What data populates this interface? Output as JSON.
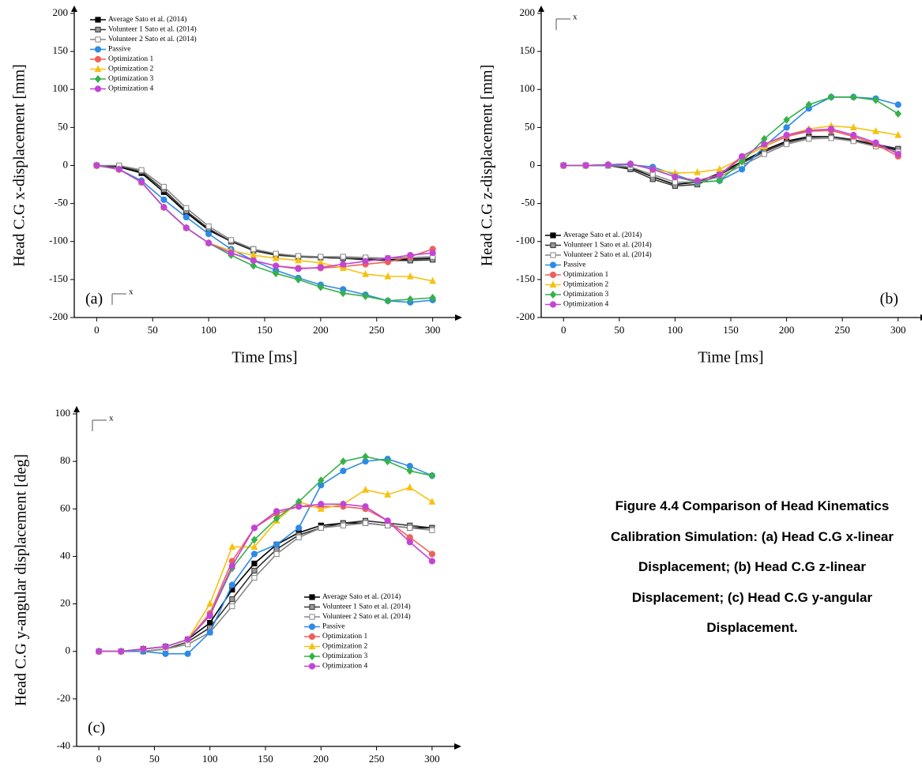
{
  "caption": "Figure 4.4 Comparison of Head Kinematics Calibration Simulation: (a) Head C.G x-linear Displacement; (b) Head C.G z-linear Displacement; (c) Head C.G y-angular Displacement.",
  "chart_data": [
    {
      "type": "line",
      "panel_label": "(a)",
      "orientation_label": "x",
      "x_label": "Time [ms]",
      "y_label": "Head C.G x-displacement [mm]",
      "legend": "upper left",
      "xlim": [
        -20,
        320
      ],
      "xticks": [
        0,
        50,
        100,
        150,
        200,
        250,
        300
      ],
      "ylim": [
        -200,
        200
      ],
      "yticks": [
        -200,
        -150,
        -100,
        -50,
        0,
        50,
        100,
        150,
        200
      ],
      "x": [
        0,
        20,
        40,
        60,
        80,
        100,
        120,
        140,
        160,
        180,
        200,
        220,
        240,
        260,
        280,
        300
      ],
      "series": [
        {
          "name": "Average Sato et al. (2014)",
          "color": "#000000",
          "marker": "square",
          "values": [
            0,
            -2,
            -10,
            -35,
            -62,
            -85,
            -100,
            -110,
            -117,
            -120,
            -121,
            -122,
            -123,
            -124,
            -123,
            -122
          ]
        },
        {
          "name": "Volunteer 1 Sato et al. (2014)",
          "color": "#333333",
          "marker": "half-square",
          "values": [
            0,
            -1,
            -8,
            -32,
            -60,
            -83,
            -100,
            -112,
            -118,
            -120,
            -121,
            -122,
            -124,
            -125,
            -125,
            -124
          ]
        },
        {
          "name": "Volunteer 2 Sato et al. (2014)",
          "color": "#888888",
          "marker": "open-square",
          "values": [
            0,
            0,
            -6,
            -28,
            -56,
            -80,
            -98,
            -110,
            -116,
            -119,
            -120,
            -120,
            -121,
            -122,
            -121,
            -120
          ]
        },
        {
          "name": "Passive",
          "color": "#2e8ae6",
          "marker": "circle",
          "values": [
            0,
            -5,
            -20,
            -45,
            -68,
            -90,
            -110,
            -125,
            -138,
            -148,
            -157,
            -163,
            -170,
            -178,
            -180,
            -177
          ]
        },
        {
          "name": "Optimization 1",
          "color": "#f0605a",
          "marker": "circle",
          "values": [
            0,
            -5,
            -22,
            -55,
            -82,
            -102,
            -115,
            -125,
            -132,
            -135,
            -135,
            -133,
            -130,
            -127,
            -120,
            -110
          ]
        },
        {
          "name": "Optimization 2",
          "color": "#f5c211",
          "marker": "triangle",
          "values": [
            0,
            -5,
            -22,
            -55,
            -82,
            -102,
            -112,
            -118,
            -122,
            -125,
            -128,
            -135,
            -143,
            -146,
            -146,
            -152
          ]
        },
        {
          "name": "Optimization 3",
          "color": "#36b14a",
          "marker": "diamond",
          "values": [
            0,
            -5,
            -22,
            -55,
            -82,
            -102,
            -118,
            -132,
            -142,
            -150,
            -160,
            -168,
            -172,
            -178,
            -176,
            -174
          ]
        },
        {
          "name": "Optimization 4",
          "color": "#c245d6",
          "marker": "circle",
          "values": [
            0,
            -5,
            -22,
            -55,
            -82,
            -102,
            -115,
            -125,
            -132,
            -136,
            -134,
            -130,
            -126,
            -122,
            -118,
            -115
          ]
        }
      ]
    },
    {
      "type": "line",
      "panel_label": "(b)",
      "orientation_label": "x",
      "x_label": "Time [ms]",
      "y_label": "Head C.G z-displacement [mm]",
      "legend": "lower left",
      "xlim": [
        -20,
        320
      ],
      "xticks": [
        0,
        50,
        100,
        150,
        200,
        250,
        300
      ],
      "ylim": [
        -200,
        200
      ],
      "yticks": [
        -200,
        -150,
        -100,
        -50,
        0,
        50,
        100,
        150,
        200
      ],
      "x": [
        0,
        20,
        40,
        60,
        80,
        100,
        120,
        140,
        160,
        180,
        200,
        220,
        240,
        260,
        280,
        300
      ],
      "series": [
        {
          "name": "Average Sato et al. (2014)",
          "color": "#000000",
          "marker": "square",
          "values": [
            0,
            0,
            0,
            -3,
            -15,
            -25,
            -22,
            -10,
            5,
            20,
            32,
            38,
            38,
            33,
            27,
            20
          ]
        },
        {
          "name": "Volunteer 1 Sato et al. (2014)",
          "color": "#333333",
          "marker": "half-square",
          "values": [
            0,
            0,
            0,
            -5,
            -18,
            -27,
            -25,
            -12,
            3,
            18,
            30,
            37,
            38,
            34,
            28,
            22
          ]
        },
        {
          "name": "Volunteer 2 Sato et al. (2014)",
          "color": "#888888",
          "marker": "open-square",
          "values": [
            0,
            0,
            0,
            -2,
            -12,
            -22,
            -22,
            -15,
            0,
            15,
            28,
            35,
            36,
            32,
            25,
            18
          ]
        },
        {
          "name": "Passive",
          "color": "#2e8ae6",
          "marker": "circle",
          "values": [
            0,
            0,
            0,
            1,
            -2,
            -12,
            -22,
            -20,
            -5,
            25,
            50,
            75,
            90,
            90,
            88,
            80
          ]
        },
        {
          "name": "Optimization 1",
          "color": "#f0605a",
          "marker": "circle",
          "values": [
            0,
            0,
            1,
            2,
            -5,
            -15,
            -20,
            -12,
            10,
            25,
            38,
            45,
            46,
            38,
            28,
            12
          ]
        },
        {
          "name": "Optimization 2",
          "color": "#f5c211",
          "marker": "triangle",
          "values": [
            0,
            0,
            1,
            2,
            -5,
            -10,
            -9,
            -5,
            10,
            25,
            40,
            48,
            52,
            50,
            45,
            40
          ]
        },
        {
          "name": "Optimization 3",
          "color": "#36b14a",
          "marker": "diamond",
          "values": [
            0,
            0,
            1,
            2,
            -5,
            -15,
            -22,
            -20,
            5,
            35,
            60,
            80,
            90,
            90,
            86,
            68
          ]
        },
        {
          "name": "Optimization 4",
          "color": "#c245d6",
          "marker": "circle",
          "values": [
            0,
            0,
            1,
            2,
            -5,
            -15,
            -20,
            -12,
            12,
            28,
            40,
            46,
            48,
            40,
            30,
            15
          ]
        }
      ]
    },
    {
      "type": "line",
      "panel_label": "(c)",
      "orientation_label": "x",
      "x_label": "Time [ms]",
      "y_label": "Head C.G y-angular displacement [deg]",
      "legend": "lower right",
      "xlim": [
        -20,
        320
      ],
      "xticks": [
        0,
        50,
        100,
        150,
        200,
        250,
        300
      ],
      "ylim": [
        -40,
        100
      ],
      "yticks": [
        -40,
        -20,
        0,
        20,
        40,
        60,
        80,
        100
      ],
      "x": [
        0,
        20,
        40,
        60,
        80,
        100,
        120,
        140,
        160,
        180,
        200,
        220,
        240,
        260,
        280,
        300
      ],
      "series": [
        {
          "name": "Average Sato et al. (2014)",
          "color": "#000000",
          "marker": "square",
          "values": [
            0,
            0,
            1,
            2,
            5,
            12,
            26,
            37,
            45,
            50,
            53,
            54,
            54,
            53,
            52,
            52
          ]
        },
        {
          "name": "Volunteer 1 Sato et al. (2014)",
          "color": "#333333",
          "marker": "half-square",
          "values": [
            0,
            0,
            0,
            1,
            4,
            10,
            22,
            34,
            43,
            49,
            52,
            54,
            55,
            54,
            53,
            52
          ]
        },
        {
          "name": "Volunteer 2 Sato et al. (2014)",
          "color": "#888888",
          "marker": "open-square",
          "values": [
            0,
            0,
            0,
            1,
            3,
            8,
            19,
            31,
            41,
            48,
            52,
            53,
            54,
            53,
            52,
            51
          ]
        },
        {
          "name": "Passive",
          "color": "#2e8ae6",
          "marker": "circle",
          "values": [
            0,
            0,
            0,
            -1,
            -1,
            8,
            28,
            41,
            45,
            52,
            70,
            76,
            80,
            81,
            78,
            74
          ]
        },
        {
          "name": "Optimization 1",
          "color": "#f0605a",
          "marker": "circle",
          "values": [
            0,
            0,
            1,
            2,
            5,
            16,
            38,
            52,
            58,
            61,
            61,
            61,
            60,
            55,
            48,
            41
          ]
        },
        {
          "name": "Optimization 2",
          "color": "#f5c211",
          "marker": "triangle",
          "values": [
            0,
            0,
            1,
            2,
            5,
            20,
            44,
            44,
            55,
            63,
            60,
            62,
            68,
            66,
            69,
            63
          ]
        },
        {
          "name": "Optimization 3",
          "color": "#36b14a",
          "marker": "diamond",
          "values": [
            0,
            0,
            1,
            2,
            5,
            15,
            35,
            47,
            56,
            63,
            72,
            80,
            82,
            80,
            76,
            74
          ]
        },
        {
          "name": "Optimization 4",
          "color": "#c245d6",
          "marker": "circle",
          "values": [
            0,
            0,
            1,
            2,
            5,
            15,
            36,
            52,
            59,
            61,
            62,
            62,
            61,
            55,
            46,
            38
          ]
        }
      ]
    }
  ]
}
